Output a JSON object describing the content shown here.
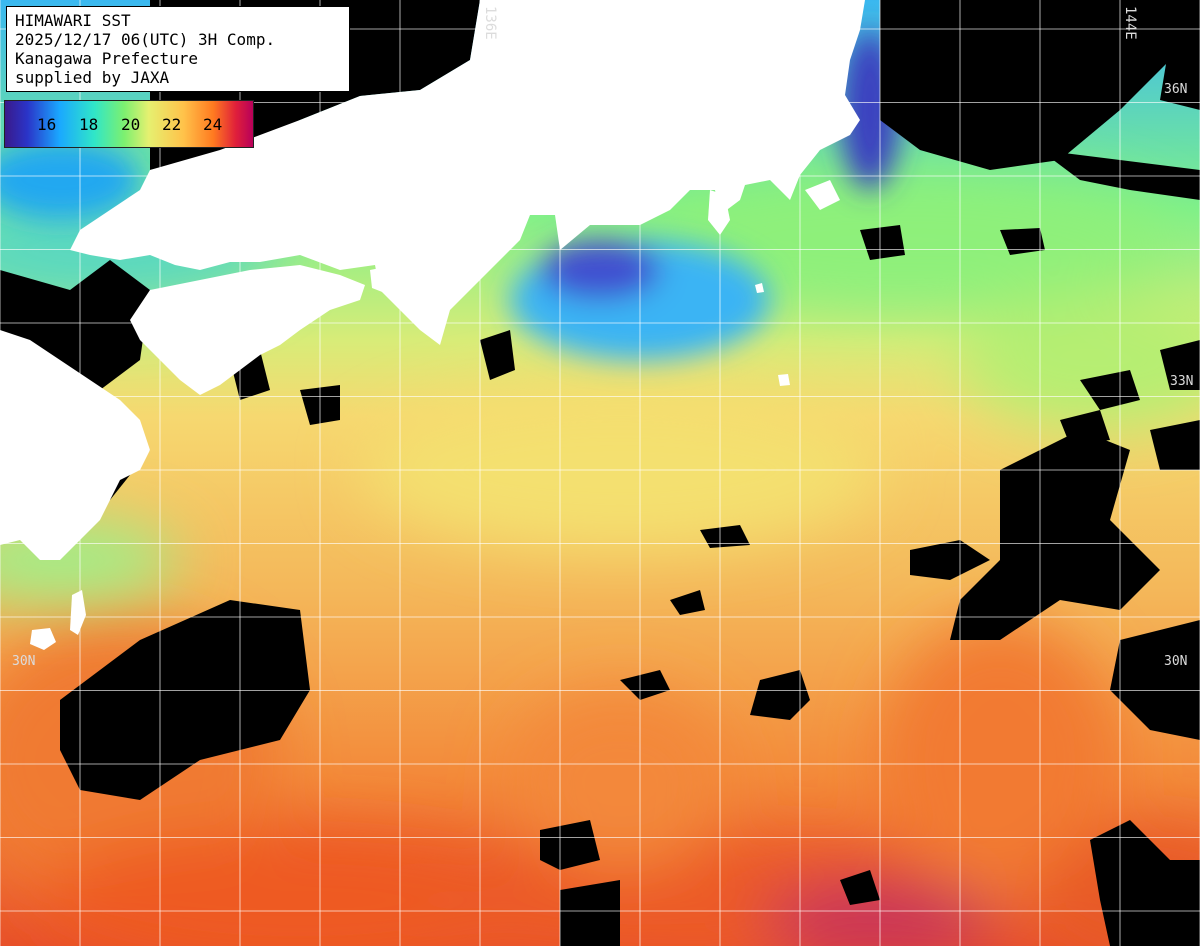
{
  "header": {
    "line1": "HIMAWARI SST",
    "line2": "2025/12/17 06(UTC) 3H Comp.",
    "line3": "Kanagawa Prefecture",
    "line4": "supplied by JAXA"
  },
  "legend": {
    "ticks": [
      "16",
      "18",
      "20",
      "22",
      "24"
    ]
  },
  "grid_labels": {
    "lon_136": "136E",
    "lon_144": "144E",
    "lat_36": "36N",
    "lat_33": "33N",
    "lat_30_left": "30N",
    "lat_30_right": "30N"
  },
  "colors": {
    "land": "#ffffff",
    "cloud": "#000000",
    "grid": "#ffffff",
    "warm": "#f26a1c",
    "mid": "#f6c25c",
    "cool": "#8ef07a",
    "cold": "#3ab8f0"
  }
}
